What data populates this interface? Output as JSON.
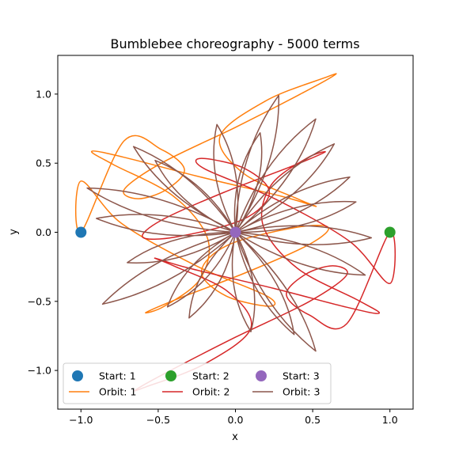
{
  "chart_data": {
    "type": "line",
    "title": "Bumblebee choreography - 5000 terms",
    "xlabel": "x",
    "ylabel": "y",
    "xlim": [
      -1.15,
      1.15
    ],
    "ylim": [
      -1.28,
      1.28
    ],
    "x_ticks": [
      -1.0,
      -0.5,
      0.0,
      0.5,
      1.0
    ],
    "y_ticks": [
      -1.0,
      -0.5,
      0.0,
      0.5,
      1.0
    ],
    "x_tick_labels": [
      "−1.0",
      "−0.5",
      "0.0",
      "0.5",
      "1.0"
    ],
    "y_tick_labels": [
      "−1.0",
      "−0.5",
      "0.0",
      "0.5",
      "1.0"
    ],
    "grid": false,
    "legend_position": "bottom",
    "legend_columns": 3,
    "colors": {
      "start_1": "#1f77b4",
      "orbit_1": "#ff7f0e",
      "start_2": "#2ca02c",
      "orbit_2": "#d62728",
      "start_3": "#9467bd",
      "orbit_3": "#8c564b"
    },
    "start_points": [
      {
        "name": "Start: 1",
        "x": -1.0,
        "y": 0.0
      },
      {
        "name": "Start: 2",
        "x": 1.0,
        "y": 0.0
      },
      {
        "name": "Start: 3",
        "x": 0.0,
        "y": 0.0
      }
    ],
    "series": [
      {
        "name": "Orbit: 1",
        "center": [
          -0.27,
          0.22
        ],
        "x_range": [
          -1.03,
          0.82
        ],
        "y_range": [
          -0.5,
          1.17
        ],
        "x": [
          -1.0,
          -0.72,
          -0.48,
          -0.33,
          -0.45,
          -0.63,
          -0.72,
          -0.48,
          0.0,
          0.42,
          0.64,
          0.58,
          0.2,
          -0.1,
          0.05,
          0.4,
          0.52,
          0.3,
          -0.25,
          -0.72,
          -0.93,
          -0.79,
          -0.4,
          -0.18,
          -0.23,
          -0.46,
          -0.58,
          -0.37,
          0.08,
          0.48,
          0.6,
          0.38,
          -0.05,
          -0.22,
          -0.06,
          0.22,
          0.2,
          -0.26,
          -0.74,
          -1.0
        ]
      },
      {
        "name": "Orbit: 2",
        "center": [
          0.27,
          -0.22
        ],
        "x_range": [
          -0.82,
          1.03
        ],
        "y_range": [
          -1.17,
          0.5
        ]
      },
      {
        "name": "Orbit: 3",
        "center": [
          0.0,
          0.0
        ],
        "x_range": [
          -1.02,
          0.86
        ],
        "y_range": [
          -0.86,
          0.99
        ]
      }
    ]
  }
}
